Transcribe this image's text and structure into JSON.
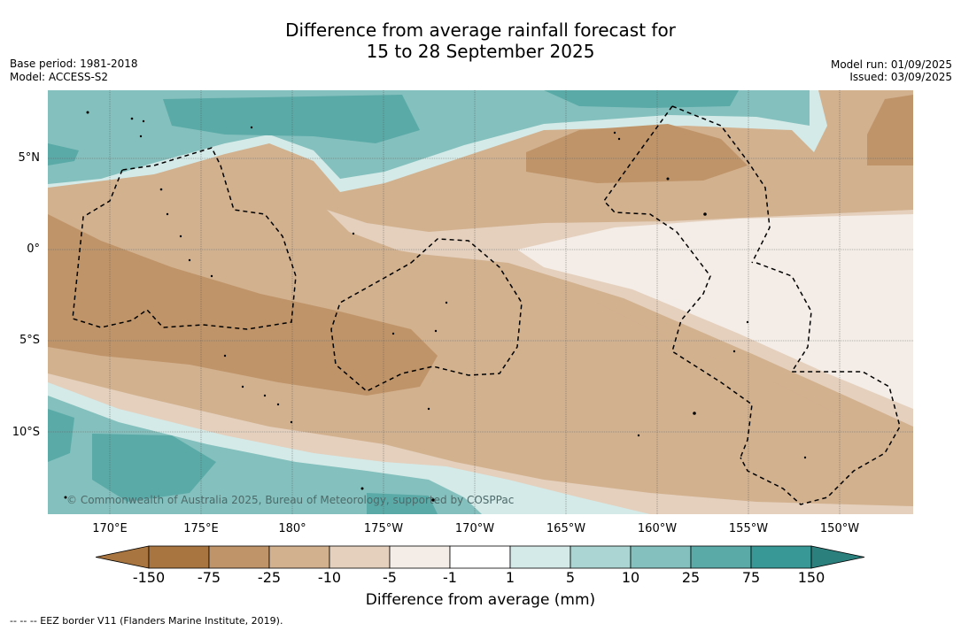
{
  "header": {
    "title_line1": "Difference from average rainfall forecast for",
    "title_line2": "15 to 28 September 2025",
    "base_period": "Base period: 1981-2018",
    "model": "Model: ACCESS-S2",
    "model_run": "Model run: 01/09/2025",
    "issued": "Issued: 03/09/2025"
  },
  "map": {
    "copyright": "© Commonwealth of Australia 2025, Bureau of Meteorology, supported by COSPPac",
    "lat_labels": [
      "5°N",
      "0°",
      "5°S",
      "10°S"
    ],
    "lon_labels": [
      "170°E",
      "175°E",
      "180°",
      "175°W",
      "170°W",
      "165°W",
      "160°W",
      "155°W",
      "150°W"
    ]
  },
  "legend": {
    "title": "Difference from average (mm)",
    "ticks": [
      "-150",
      "-75",
      "-25",
      "-10",
      "-5",
      "-1",
      "1",
      "5",
      "10",
      "25",
      "75",
      "150"
    ],
    "colors": [
      "#a87440",
      "#bf9469",
      "#d2b18f",
      "#e4d0bd",
      "#f4ece6",
      "#ffffff",
      "#d4eae8",
      "#aad5d2",
      "#84c0bd",
      "#5aaaa8",
      "#379896",
      "#2b7f7d"
    ]
  },
  "footnote": "--  --  -- EEZ border V11 (Flanders Marine Institute, 2019)."
}
